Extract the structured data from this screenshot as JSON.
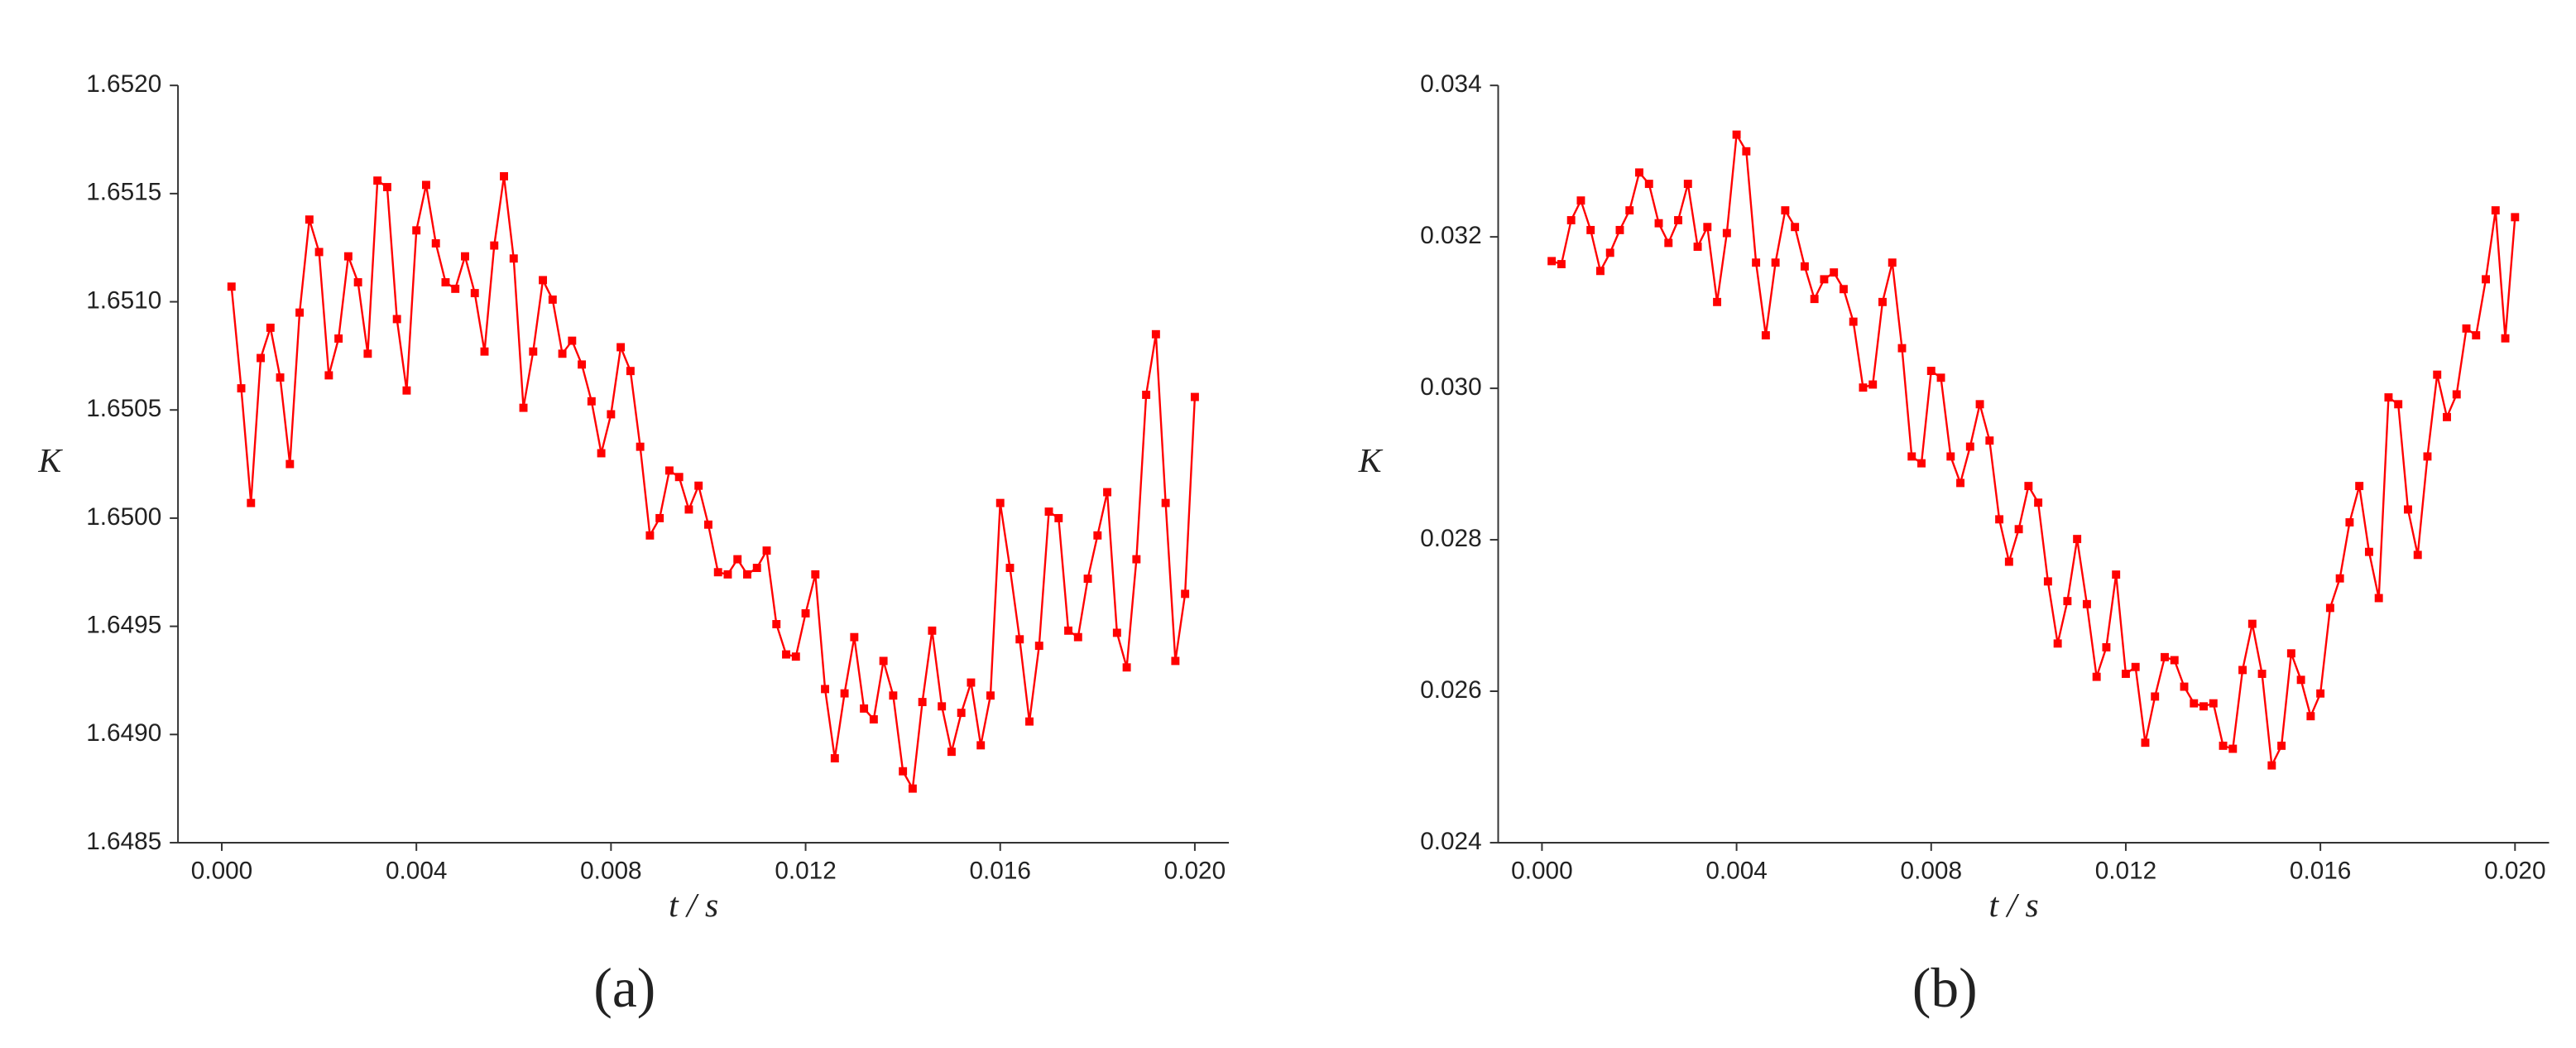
{
  "chart_data": [
    {
      "type": "line",
      "caption": "(a)",
      "x_label": "t / s",
      "y_label": "K",
      "color": "#ff0000",
      "x": [
        0.0002,
        0.0004,
        0.0006,
        0.0008,
        0.001,
        0.0012,
        0.0014,
        0.0016,
        0.0018,
        0.002,
        0.0022,
        0.0024,
        0.0026,
        0.0028,
        0.003,
        0.0032,
        0.0034,
        0.0036,
        0.0038,
        0.004,
        0.0042,
        0.0044,
        0.0046,
        0.0048,
        0.005,
        0.0052,
        0.0054,
        0.0056,
        0.0058,
        0.006,
        0.0062,
        0.0064,
        0.0066,
        0.0068,
        0.007,
        0.0072,
        0.0074,
        0.0076,
        0.0078,
        0.008,
        0.0082,
        0.0084,
        0.0086,
        0.0088,
        0.009,
        0.0092,
        0.0094,
        0.0096,
        0.0098,
        0.01,
        0.0102,
        0.0104,
        0.0106,
        0.0108,
        0.011,
        0.0112,
        0.0114,
        0.0116,
        0.0118,
        0.012,
        0.0122,
        0.0124,
        0.0126,
        0.0128,
        0.013,
        0.0132,
        0.0134,
        0.0136,
        0.0138,
        0.014,
        0.0142,
        0.0144,
        0.0146,
        0.0148,
        0.015,
        0.0152,
        0.0154,
        0.0156,
        0.0158,
        0.016,
        0.0162,
        0.0164,
        0.0166,
        0.0168,
        0.017,
        0.0172,
        0.0174,
        0.0176,
        0.0178,
        0.018,
        0.0182,
        0.0184,
        0.0186,
        0.0188,
        0.019,
        0.0192,
        0.0194,
        0.0196,
        0.0198,
        0.02
      ],
      "values": [
        1.65107,
        1.6506,
        1.65007,
        1.65074,
        1.65088,
        1.65065,
        1.65025,
        1.65095,
        1.65138,
        1.65123,
        1.65066,
        1.65083,
        1.65121,
        1.65109,
        1.65076,
        1.65156,
        1.65153,
        1.65092,
        1.65059,
        1.65133,
        1.65154,
        1.65127,
        1.65109,
        1.65106,
        1.65121,
        1.65104,
        1.65077,
        1.65126,
        1.65158,
        1.6512,
        1.65051,
        1.65077,
        1.6511,
        1.65101,
        1.65076,
        1.65082,
        1.65071,
        1.65054,
        1.6503,
        1.65048,
        1.65079,
        1.65068,
        1.65033,
        1.64992,
        1.65,
        1.65022,
        1.65019,
        1.65004,
        1.65015,
        1.64997,
        1.64975,
        1.64974,
        1.64981,
        1.64974,
        1.64977,
        1.64985,
        1.64951,
        1.64937,
        1.64936,
        1.64956,
        1.64974,
        1.64921,
        1.64889,
        1.64919,
        1.64945,
        1.64912,
        1.64907,
        1.64934,
        1.64918,
        1.64883,
        1.64875,
        1.64915,
        1.64948,
        1.64913,
        1.64892,
        1.6491,
        1.64924,
        1.64895,
        1.64918,
        1.65007,
        1.64977,
        1.64944,
        1.64906,
        1.64941,
        1.65003,
        1.65,
        1.64948,
        1.64945,
        1.64972,
        1.64992,
        1.65012,
        1.64947,
        1.64931,
        1.64981,
        1.65057,
        1.65085,
        1.65007,
        1.64934,
        1.64965,
        1.65056
      ],
      "xlim": [
        -0.0009,
        0.0207
      ],
      "xticks": [
        {
          "value": 0,
          "label": "0.000"
        },
        0.004,
        0.008,
        0.012,
        0.016,
        {
          "value": 0.02,
          "label": "0.020"
        }
      ],
      "ylim": [
        1.6485,
        1.652
      ],
      "yticks": [
        1.6485,
        {
          "value": 1.649,
          "label": "1.6490"
        },
        1.6495,
        {
          "value": 1.65,
          "label": "1.6500"
        },
        1.6505,
        {
          "value": 1.651,
          "label": "1.6510"
        },
        1.6515,
        {
          "value": 1.652,
          "label": "1.6520"
        }
      ]
    },
    {
      "type": "line",
      "caption": "(b)",
      "x_label": "t / s",
      "y_label": "K",
      "color": "#ff0000",
      "x": [
        0.0002,
        0.0004,
        0.0006,
        0.0008,
        0.001,
        0.0012,
        0.0014,
        0.0016,
        0.0018,
        0.002,
        0.0022,
        0.0024,
        0.0026,
        0.0028,
        0.003,
        0.0032,
        0.0034,
        0.0036,
        0.0038,
        0.004,
        0.0042,
        0.0044,
        0.0046,
        0.0048,
        0.005,
        0.0052,
        0.0054,
        0.0056,
        0.0058,
        0.006,
        0.0062,
        0.0064,
        0.0066,
        0.0068,
        0.007,
        0.0072,
        0.0074,
        0.0076,
        0.0078,
        0.008,
        0.0082,
        0.0084,
        0.0086,
        0.0088,
        0.009,
        0.0092,
        0.0094,
        0.0096,
        0.0098,
        0.01,
        0.0102,
        0.0104,
        0.0106,
        0.0108,
        0.011,
        0.0112,
        0.0114,
        0.0116,
        0.0118,
        0.012,
        0.0122,
        0.0124,
        0.0126,
        0.0128,
        0.013,
        0.0132,
        0.0134,
        0.0136,
        0.0138,
        0.014,
        0.0142,
        0.0144,
        0.0146,
        0.0148,
        0.015,
        0.0152,
        0.0154,
        0.0156,
        0.0158,
        0.016,
        0.0162,
        0.0164,
        0.0166,
        0.0168,
        0.017,
        0.0172,
        0.0174,
        0.0176,
        0.0178,
        0.018,
        0.0182,
        0.0184,
        0.0186,
        0.0188,
        0.019,
        0.0192,
        0.0194,
        0.0196,
        0.0198,
        0.02
      ],
      "values": [
        0.03168,
        0.03164,
        0.03222,
        0.03248,
        0.03209,
        0.03155,
        0.03179,
        0.03209,
        0.03235,
        0.03285,
        0.0327,
        0.03218,
        0.03192,
        0.03222,
        0.0327,
        0.03187,
        0.03213,
        0.03114,
        0.03205,
        0.03335,
        0.03313,
        0.03166,
        0.0307,
        0.03166,
        0.03235,
        0.03213,
        0.03161,
        0.03118,
        0.03144,
        0.03153,
        0.03131,
        0.03088,
        0.03001,
        0.03005,
        0.03114,
        0.03166,
        0.03053,
        0.0291,
        0.02901,
        0.03023,
        0.03014,
        0.0291,
        0.02875,
        0.02923,
        0.02979,
        0.02931,
        0.02827,
        0.02771,
        0.02814,
        0.02871,
        0.02849,
        0.02745,
        0.02663,
        0.02719,
        0.02801,
        0.02715,
        0.02619,
        0.02658,
        0.02754,
        0.02623,
        0.02632,
        0.02532,
        0.02593,
        0.02645,
        0.02641,
        0.02606,
        0.02584,
        0.0258,
        0.02584,
        0.02528,
        0.02524,
        0.02628,
        0.02689,
        0.02623,
        0.02502,
        0.02528,
        0.0265,
        0.02615,
        0.02567,
        0.02597,
        0.0271,
        0.02749,
        0.02823,
        0.02871,
        0.02784,
        0.02723,
        0.02988,
        0.02979,
        0.0284,
        0.0278,
        0.0291,
        0.03018,
        0.02962,
        0.02992,
        0.03079,
        0.0307,
        0.03144,
        0.03235,
        0.03066,
        0.03226
      ],
      "xlim": [
        -0.0009,
        0.0207
      ],
      "xticks": [
        {
          "value": 0,
          "label": "0.000"
        },
        0.004,
        0.008,
        0.012,
        0.016,
        {
          "value": 0.02,
          "label": "0.020"
        }
      ],
      "ylim": [
        0.024,
        0.034
      ],
      "yticks": [
        0.024,
        0.026,
        0.028,
        {
          "value": 0.03,
          "label": "0.030"
        },
        0.032,
        0.034
      ]
    }
  ]
}
